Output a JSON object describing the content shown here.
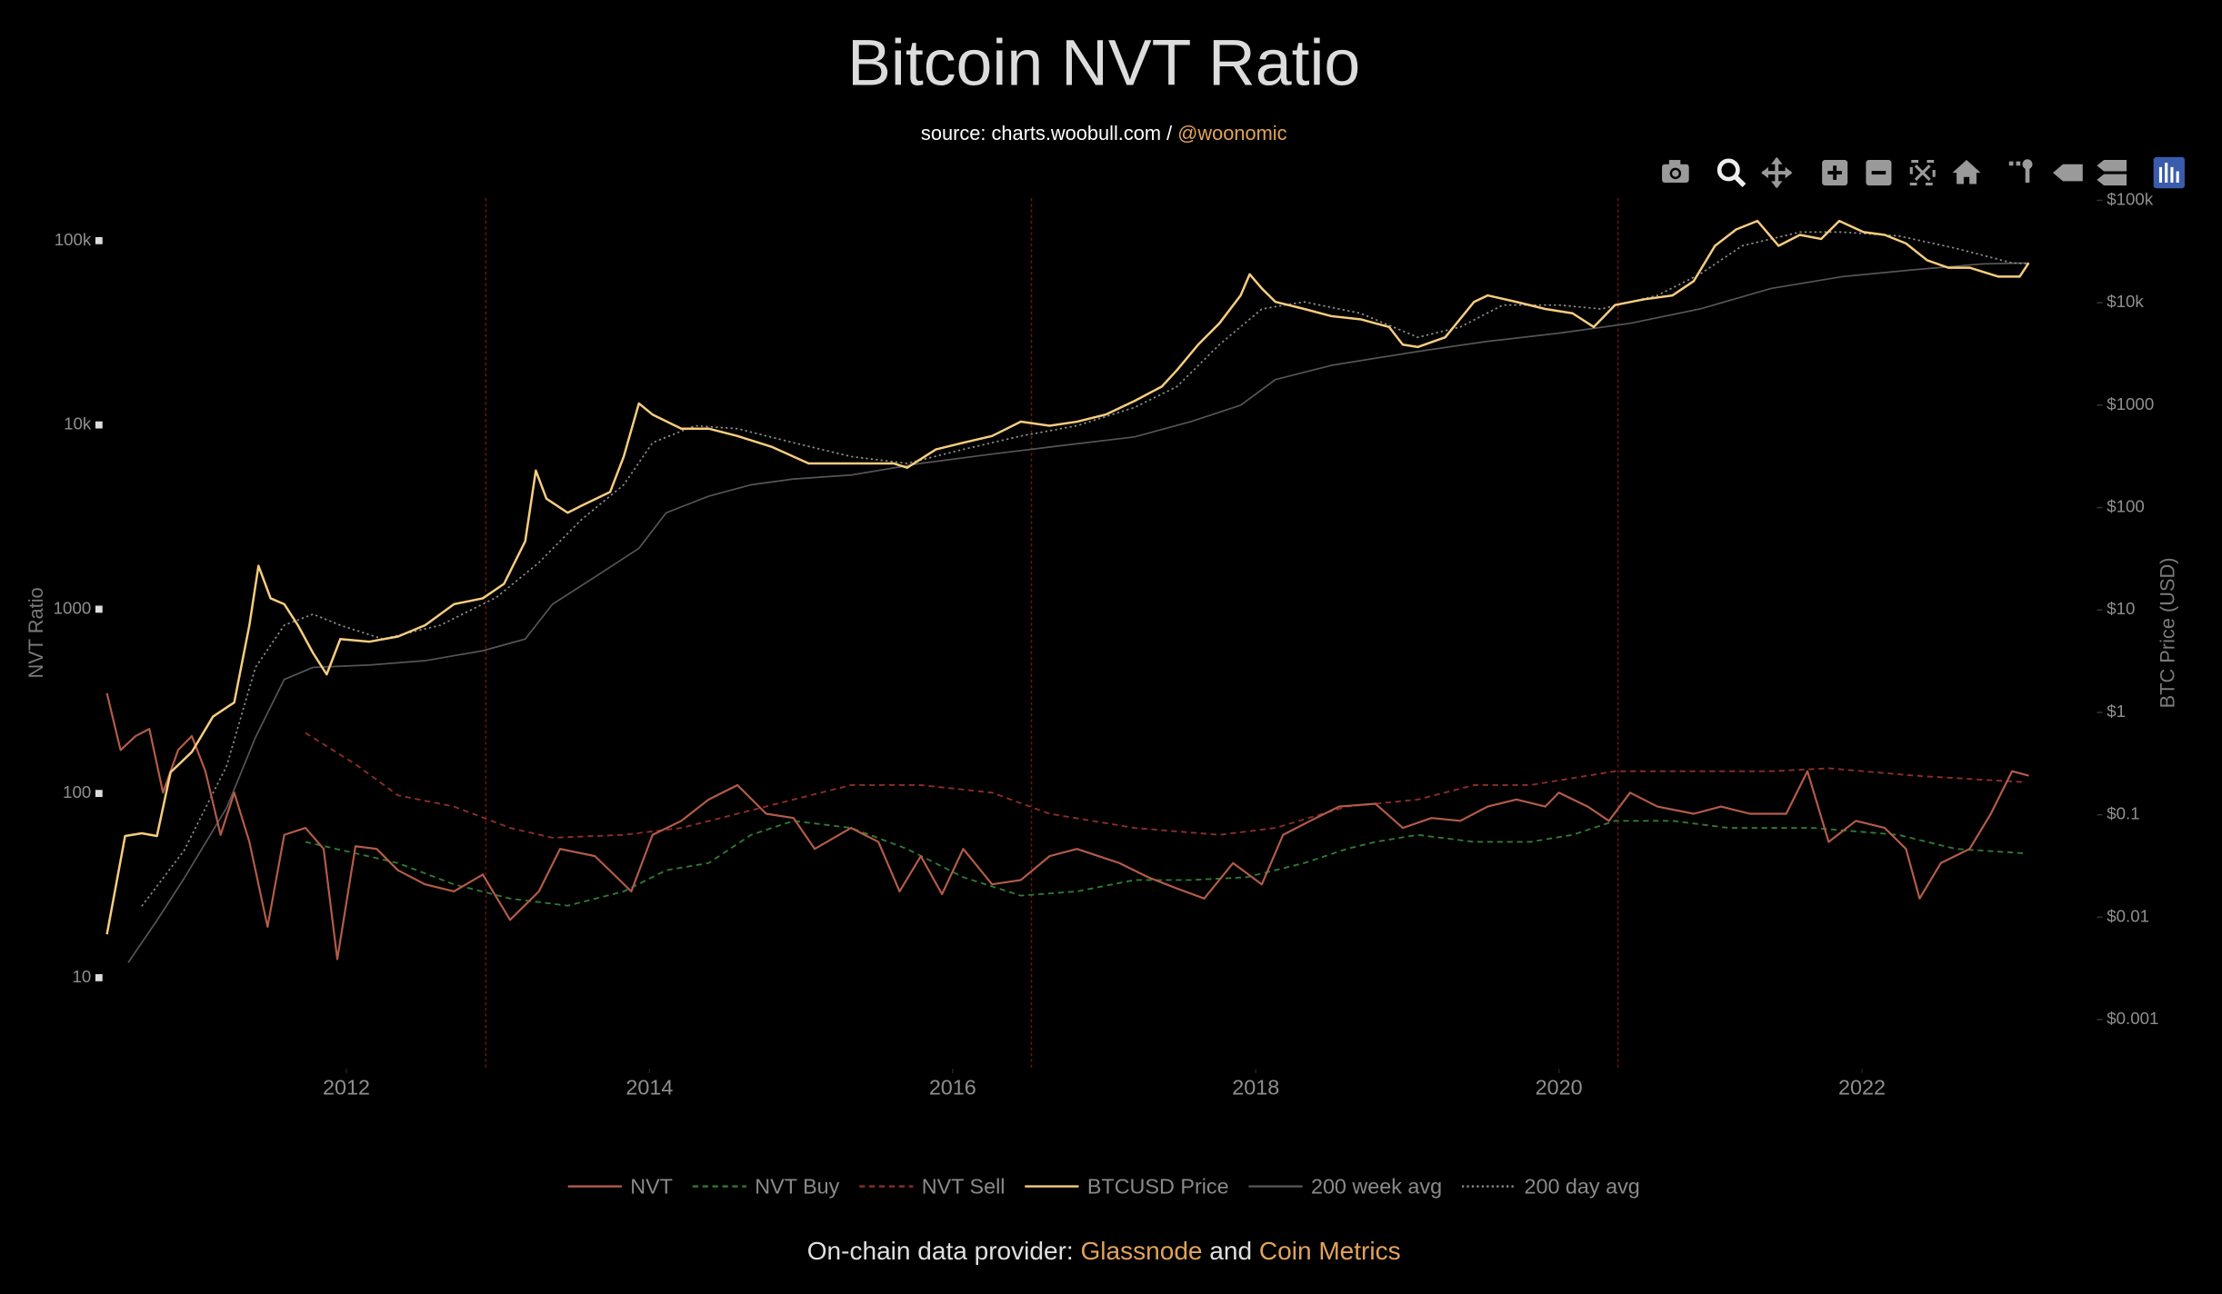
{
  "chart_data": {
    "type": "line",
    "title": "Bitcoin NVT Ratio",
    "subtitle": {
      "source": "source: charts.woobull.com /",
      "handle": "@woonomic"
    },
    "footer": {
      "prefix": "On-chain data provider:",
      "provider1": "Glassnode",
      "joiner": "and",
      "provider2": "Coin Metrics"
    },
    "ylabel": "NVT Ratio",
    "y2label": "BTC Price (USD)",
    "log_y": true,
    "log_y2": true,
    "legend": "bottom",
    "xlim": [
      2010.4,
      2023.4
    ],
    "xticks": [
      2012,
      2014,
      2016,
      2018,
      2020,
      2022
    ],
    "ylim": [
      3.2,
      170000
    ],
    "yticks": [
      10,
      100,
      1000,
      {
        "value": 10000,
        "label": "10k"
      },
      {
        "value": 100000,
        "label": "100k"
      }
    ],
    "y2lim": [
      0.00033,
      105000
    ],
    "y2ticks": [
      {
        "value": 0.001,
        "label": "$0.001"
      },
      {
        "value": 0.01,
        "label": "$0.01"
      },
      {
        "value": 0.1,
        "label": "$0.1"
      },
      {
        "value": 1,
        "label": "$1"
      },
      {
        "value": 10,
        "label": "$10"
      },
      {
        "value": 100,
        "label": "$100"
      },
      {
        "value": 1000,
        "label": "$1000"
      },
      {
        "value": 10000,
        "label": "$10k"
      },
      {
        "value": 100000,
        "label": "$100k"
      }
    ],
    "vlines": [
      2012.92,
      2016.52,
      2020.39
    ],
    "series": [
      {
        "name": "NVT",
        "color": "#b35c48",
        "dash": "solid",
        "width": 1.4,
        "x": [
          2010.42,
          2010.51,
          2010.61,
          2010.7,
          2010.79,
          2010.89,
          2010.98,
          2011.07,
          2011.17,
          2011.26,
          2011.36,
          2011.48,
          2011.59,
          2011.73,
          2011.85,
          2011.94,
          2012.06,
          2012.2,
          2012.34,
          2012.52,
          2012.71,
          2012.9,
          2013.08,
          2013.27,
          2013.41,
          2013.64,
          2013.88,
          2014.02,
          2014.21,
          2014.39,
          2014.58,
          2014.77,
          2014.95,
          2015.09,
          2015.33,
          2015.51,
          2015.65,
          2015.79,
          2015.93,
          2016.07,
          2016.26,
          2016.45,
          2016.64,
          2016.82,
          2017.1,
          2017.29,
          2017.48,
          2017.66,
          2017.85,
          2018.04,
          2018.18,
          2018.36,
          2018.55,
          2018.79,
          2018.97,
          2019.16,
          2019.35,
          2019.53,
          2019.72,
          2019.91,
          2020.0,
          2020.19,
          2020.33,
          2020.47,
          2020.65,
          2020.89,
          2021.07,
          2021.26,
          2021.5,
          2021.64,
          2021.78,
          2021.96,
          2022.15,
          2022.29,
          2022.38,
          2022.52,
          2022.71,
          2022.85,
          2022.99,
          2023.1
        ],
        "values": [
          350,
          172,
          205,
          224,
          101,
          172,
          205,
          132,
          59.6,
          101,
          54.6,
          18.9,
          59.6,
          65,
          50,
          12.6,
          51.7,
          50,
          38.3,
          32.1,
          29.4,
          36.3,
          20.6,
          29.4,
          50,
          45.7,
          29.4,
          59.6,
          71,
          92.7,
          111,
          77.6,
          73.6,
          50,
          65,
          54.6,
          29.4,
          45.7,
          28.4,
          50,
          32.1,
          33.9,
          45.7,
          50,
          41.9,
          35.1,
          30.5,
          26.9,
          41.9,
          32.1,
          59.6,
          71,
          84.9,
          87.9,
          65,
          73.6,
          71,
          84.9,
          92.7,
          84.9,
          101,
          84.9,
          71,
          101,
          84.9,
          77.6,
          84.9,
          77.6,
          77.6,
          132,
          54.6,
          71,
          65,
          50,
          26.9,
          41.9,
          50,
          77.6,
          132,
          125
        ]
      },
      {
        "name": "NVT Buy",
        "color": "#2f7a34",
        "dash": "dash",
        "width": 1.2,
        "x": [
          2011.73,
          2012.34,
          2012.71,
          2013.08,
          2013.46,
          2013.83,
          2014.11,
          2014.39,
          2014.67,
          2014.95,
          2015.33,
          2015.7,
          2016.07,
          2016.45,
          2016.82,
          2017.2,
          2017.57,
          2017.94,
          2018.32,
          2018.6,
          2018.79,
          2019.07,
          2019.44,
          2019.81,
          2020.09,
          2020.37,
          2020.75,
          2021.12,
          2021.68,
          2022.24,
          2022.62,
          2023.08
        ],
        "values": [
          54.6,
          41.9,
          32.1,
          26.9,
          24.6,
          29.4,
          38.3,
          41.9,
          59.6,
          71,
          65,
          50,
          35.1,
          27.9,
          29.4,
          33.9,
          33.9,
          35.1,
          41.9,
          50,
          54.6,
          59.6,
          54.6,
          54.6,
          59.6,
          71,
          71,
          65,
          65,
          59.6,
          50,
          47.3
        ]
      },
      {
        "name": "NVT Sell",
        "color": "#8e2e2a",
        "dash": "dash",
        "width": 1.2,
        "x": [
          2011.73,
          2012.06,
          2012.34,
          2012.71,
          2013.08,
          2013.36,
          2013.83,
          2014.21,
          2014.58,
          2014.95,
          2015.33,
          2015.79,
          2016.26,
          2016.64,
          2017.2,
          2017.76,
          2018.13,
          2018.6,
          2019.07,
          2019.44,
          2019.81,
          2020.09,
          2020.37,
          2020.75,
          2021.4,
          2021.78,
          2022.34,
          2023.08
        ],
        "values": [
          213,
          144,
          97.7,
          84.9,
          65,
          57.5,
          59.6,
          65,
          77.6,
          92.7,
          111,
          111,
          101,
          77.6,
          65,
          59.6,
          65,
          84.9,
          92.7,
          111,
          111,
          121,
          132,
          132,
          132,
          137,
          125,
          115
        ]
      },
      {
        "name": "BTCUSD Price",
        "color": "#f7cd7e",
        "dash": "solid",
        "width": 1.6,
        "axis": "y2",
        "x": [
          2010.42,
          2010.54,
          2010.65,
          2010.75,
          2010.84,
          2010.98,
          2011.12,
          2011.26,
          2011.36,
          2011.42,
          2011.5,
          2011.59,
          2011.68,
          2011.78,
          2011.87,
          2011.96,
          2012.15,
          2012.34,
          2012.52,
          2012.71,
          2012.9,
          2013.04,
          2013.18,
          2013.25,
          2013.32,
          2013.46,
          2013.55,
          2013.74,
          2013.83,
          2013.93,
          2014.02,
          2014.21,
          2014.39,
          2014.58,
          2014.81,
          2015.05,
          2015.23,
          2015.42,
          2015.61,
          2015.7,
          2015.89,
          2016.07,
          2016.26,
          2016.45,
          2016.64,
          2016.82,
          2017.01,
          2017.2,
          2017.38,
          2017.48,
          2017.62,
          2017.76,
          2017.9,
          2017.96,
          2018.04,
          2018.13,
          2018.32,
          2018.5,
          2018.69,
          2018.88,
          2018.97,
          2019.07,
          2019.25,
          2019.44,
          2019.53,
          2019.72,
          2019.91,
          2020.09,
          2020.23,
          2020.37,
          2020.56,
          2020.75,
          2020.89,
          2021.03,
          2021.17,
          2021.31,
          2021.45,
          2021.59,
          2021.73,
          2021.85,
          2022.01,
          2022.15,
          2022.29,
          2022.43,
          2022.57,
          2022.71,
          2022.9,
          2023.04,
          2023.1
        ],
        "values": [
          0.0068,
          0.062,
          0.066,
          0.062,
          0.26,
          0.41,
          0.91,
          1.25,
          7.1,
          27,
          13,
          11.4,
          7.1,
          3.8,
          2.35,
          5.2,
          4.9,
          5.5,
          7.1,
          11.4,
          13,
          18,
          47,
          230,
          122,
          89,
          104,
          142,
          315,
          1040,
          810,
          590,
          590,
          500,
          390,
          270,
          270,
          270,
          270,
          245,
          370,
          430,
          500,
          690,
          630,
          690,
          810,
          1100,
          1520,
          2200,
          3900,
          6300,
          11800,
          19000,
          13800,
          10200,
          8700,
          7400,
          6900,
          5800,
          3900,
          3700,
          4600,
          10200,
          11800,
          10200,
          8700,
          7900,
          5800,
          9500,
          10800,
          11800,
          16300,
          36000,
          52000,
          63000,
          36000,
          46000,
          42000,
          63000,
          49000,
          46000,
          38000,
          26000,
          22000,
          22000,
          18000,
          18000,
          24500
        ]
      },
      {
        "name": "200 week avg",
        "color": "#555555",
        "dash": "solid",
        "width": 1.1,
        "axis": "y2",
        "x": [
          2010.56,
          2010.75,
          2010.93,
          2011.21,
          2011.4,
          2011.59,
          2011.78,
          2012.15,
          2012.52,
          2012.9,
          2013.18,
          2013.36,
          2013.64,
          2013.93,
          2014.11,
          2014.39,
          2014.67,
          2014.95,
          2015.33,
          2015.79,
          2016.26,
          2016.73,
          2017.2,
          2017.57,
          2017.9,
          2018.13,
          2018.5,
          2019.07,
          2019.53,
          2020.0,
          2020.47,
          2020.93,
          2021.4,
          2021.87,
          2022.34,
          2022.8,
          2023.1
        ],
        "values": [
          0.0036,
          0.0093,
          0.024,
          0.117,
          0.57,
          2.1,
          2.75,
          2.9,
          3.2,
          4.0,
          5.2,
          11.4,
          21,
          40,
          89,
          129,
          167,
          190,
          208,
          270,
          333,
          405,
          490,
          690,
          1000,
          1780,
          2450,
          3350,
          4200,
          5050,
          6300,
          8700,
          13800,
          18000,
          21000,
          24000,
          24500
        ]
      },
      {
        "name": "200 day avg",
        "color": "#8a8a8a",
        "dash": "dot",
        "width": 1.1,
        "axis": "y2",
        "x": [
          2010.65,
          2010.93,
          2011.21,
          2011.4,
          2011.59,
          2011.78,
          2011.96,
          2012.24,
          2012.62,
          2012.99,
          2013.27,
          2013.55,
          2013.83,
          2014.02,
          2014.3,
          2014.58,
          2014.95,
          2015.33,
          2015.7,
          2016.07,
          2016.45,
          2016.82,
          2017.2,
          2017.48,
          2017.76,
          2018.04,
          2018.32,
          2018.69,
          2019.07,
          2019.35,
          2019.63,
          2020.0,
          2020.28,
          2020.65,
          2020.93,
          2021.21,
          2021.59,
          2021.87,
          2022.24,
          2022.62,
          2022.99,
          2023.1
        ],
        "values": [
          0.0128,
          0.045,
          0.3,
          2.75,
          7.1,
          9.1,
          7.1,
          5.2,
          7.1,
          13.3,
          29,
          76,
          167,
          430,
          630,
          590,
          430,
          315,
          270,
          370,
          500,
          630,
          950,
          1520,
          3900,
          8700,
          10200,
          7900,
          4600,
          5800,
          9500,
          9500,
          8700,
          11800,
          19000,
          36000,
          49000,
          49000,
          45000,
          34000,
          24500,
          24000
        ]
      }
    ]
  }
}
